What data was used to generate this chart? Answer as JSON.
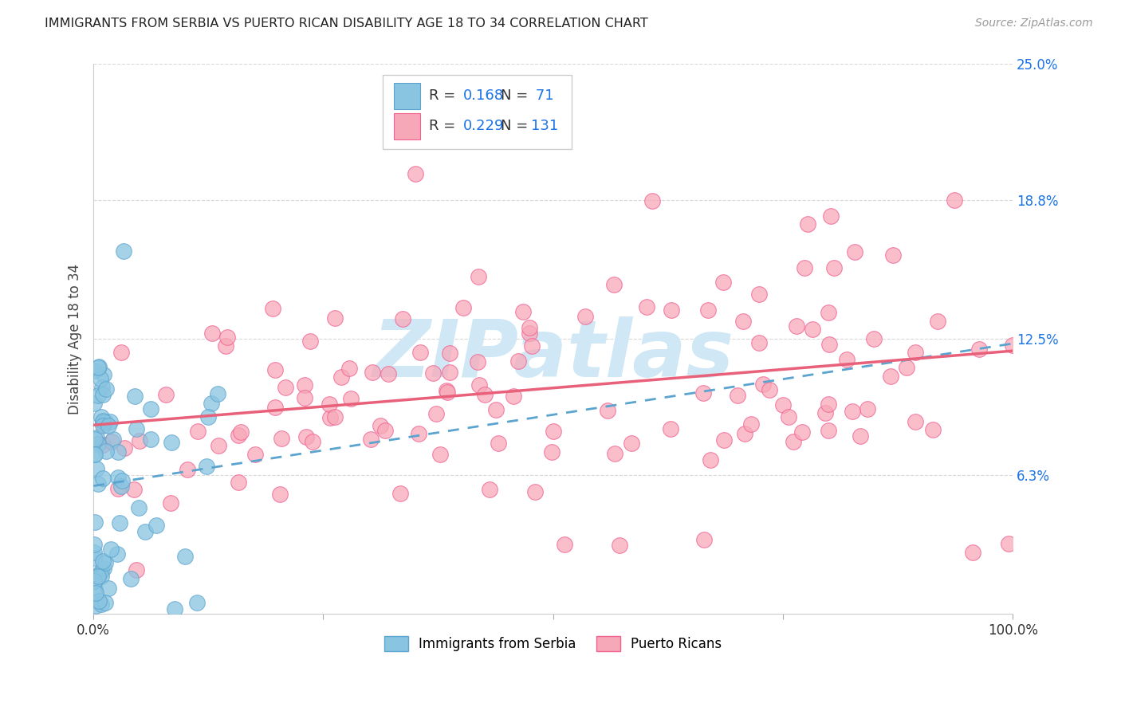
{
  "title": "IMMIGRANTS FROM SERBIA VS PUERTO RICAN DISABILITY AGE 18 TO 34 CORRELATION CHART",
  "source": "Source: ZipAtlas.com",
  "ylabel": "Disability Age 18 to 34",
  "xlim": [
    0,
    1.0
  ],
  "ylim": [
    0,
    0.25
  ],
  "ytick_positions": [
    0.063,
    0.125,
    0.188,
    0.25
  ],
  "ytick_labels": [
    "6.3%",
    "12.5%",
    "18.8%",
    "25.0%"
  ],
  "series1_color": "#89c4e1",
  "series1_edge": "#5ba4cf",
  "series2_color": "#f7a8b8",
  "series2_edge": "#f06090",
  "series1_label": "Immigrants from Serbia",
  "series2_label": "Puerto Ricans",
  "R1": "0.168",
  "N1": "71",
  "R2": "0.229",
  "N2": "131",
  "trendline1_color": "#5ba4cf",
  "trendline2_color": "#e8607a",
  "watermark_color": "#d0e8f5",
  "background_color": "#ffffff",
  "grid_color": "#d8d8d8"
}
